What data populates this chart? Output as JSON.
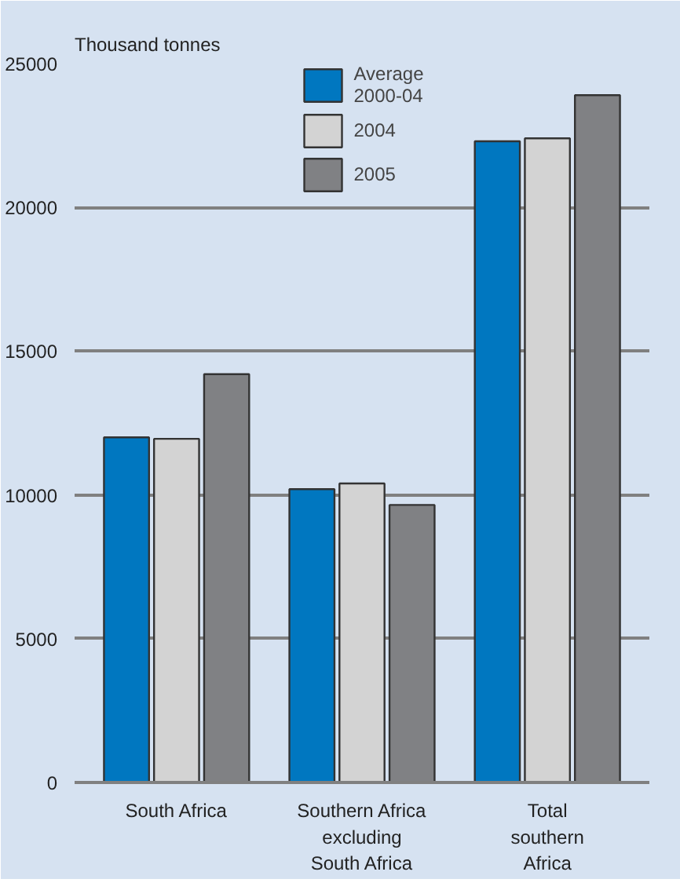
{
  "chart_data": {
    "type": "bar",
    "ylabel": "Thousand tonnes",
    "categories": [
      "South Africa",
      "Southern Africa\nexcluding\nSouth Africa",
      "Total\nsouthern\nAfrica"
    ],
    "series": [
      {
        "name": "Average\n2000-04",
        "color": "#0077c0",
        "values": [
          12000,
          10200,
          22300
        ]
      },
      {
        "name": "2004",
        "color": "#d3d3d3",
        "values": [
          11950,
          10400,
          22400
        ]
      },
      {
        "name": "2005",
        "color": "#808184",
        "values": [
          14200,
          9650,
          23900
        ]
      }
    ],
    "ylim": [
      0,
      25000
    ],
    "yticks": [
      0,
      5000,
      10000,
      15000,
      20000,
      25000
    ],
    "grid": "y",
    "legend": "top"
  }
}
